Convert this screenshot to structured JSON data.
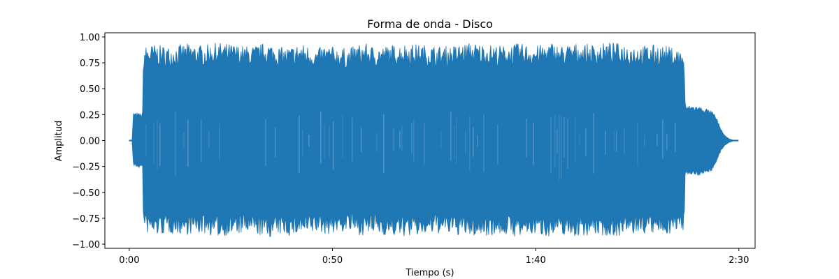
{
  "chart_data": {
    "type": "area",
    "title": "Forma de onda - Disco",
    "xlabel": "Tiempo (s)",
    "ylabel": "Amplitud",
    "xlim": [
      -6,
      154
    ],
    "ylim": [
      -1.04,
      1.04
    ],
    "x_ticks": [
      {
        "value": 0,
        "label": "0:00"
      },
      {
        "value": 50,
        "label": "0:50"
      },
      {
        "value": 100,
        "label": "1:40"
      },
      {
        "value": 150,
        "label": "2:30"
      }
    ],
    "y_ticks": [
      {
        "value": 1.0,
        "label": "1.00"
      },
      {
        "value": 0.75,
        "label": "0.75"
      },
      {
        "value": 0.5,
        "label": "0.50"
      },
      {
        "value": 0.25,
        "label": "0.25"
      },
      {
        "value": 0.0,
        "label": "0.00"
      },
      {
        "value": -0.25,
        "label": "−0.25"
      },
      {
        "value": -0.5,
        "label": "−0.50"
      },
      {
        "value": -0.75,
        "label": "−0.75"
      },
      {
        "value": -1.0,
        "label": "−1.00"
      }
    ],
    "grid": false,
    "series": [
      {
        "color": "#1f77b4",
        "x": [
          0,
          0.7,
          1.0,
          3.0,
          3.3,
          3.5,
          6,
          10,
          14,
          18,
          22,
          26,
          30,
          34,
          36,
          38,
          40,
          42,
          44,
          46,
          48,
          50,
          52,
          54,
          56,
          58,
          60,
          64,
          68,
          72,
          76,
          80,
          84,
          88,
          92,
          96,
          98,
          100,
          102,
          104,
          106,
          108,
          110,
          114,
          118,
          122,
          126,
          130,
          133,
          135,
          136.5,
          136.8,
          138,
          140,
          142,
          143.5,
          144.5,
          145.5,
          146.5,
          147.5,
          148.5,
          150
        ],
        "envelope_max": [
          0.005,
          0.005,
          0.27,
          0.26,
          0.28,
          0.91,
          0.93,
          0.91,
          0.94,
          0.92,
          0.95,
          0.93,
          0.91,
          0.95,
          0.92,
          0.9,
          0.91,
          0.94,
          0.92,
          0.88,
          0.92,
          0.91,
          0.9,
          0.89,
          0.93,
          0.94,
          0.91,
          0.92,
          0.94,
          0.93,
          0.91,
          0.92,
          0.95,
          0.93,
          0.92,
          0.94,
          0.93,
          0.92,
          0.93,
          0.95,
          0.92,
          0.93,
          0.94,
          0.93,
          0.95,
          0.94,
          0.92,
          0.93,
          0.91,
          0.89,
          0.87,
          0.33,
          0.34,
          0.33,
          0.31,
          0.28,
          0.22,
          0.12,
          0.05,
          0.02,
          0.005,
          0.005
        ],
        "envelope_min": [
          -0.005,
          -0.005,
          -0.25,
          -0.27,
          -0.26,
          -0.89,
          -0.92,
          -0.9,
          -0.91,
          -0.9,
          -0.93,
          -0.91,
          -0.9,
          -0.94,
          -0.92,
          -0.91,
          -0.93,
          -0.9,
          -0.92,
          -0.89,
          -0.91,
          -0.9,
          -0.89,
          -0.88,
          -0.91,
          -0.92,
          -0.9,
          -0.92,
          -0.93,
          -0.92,
          -0.9,
          -0.91,
          -0.93,
          -0.92,
          -0.91,
          -0.94,
          -0.92,
          -0.91,
          -0.92,
          -0.93,
          -0.91,
          -0.92,
          -0.93,
          -0.91,
          -0.93,
          -0.92,
          -0.9,
          -0.91,
          -0.9,
          -0.88,
          -0.87,
          -0.32,
          -0.33,
          -0.34,
          -0.31,
          -0.29,
          -0.21,
          -0.11,
          -0.05,
          -0.02,
          -0.005,
          -0.005
        ]
      }
    ]
  }
}
